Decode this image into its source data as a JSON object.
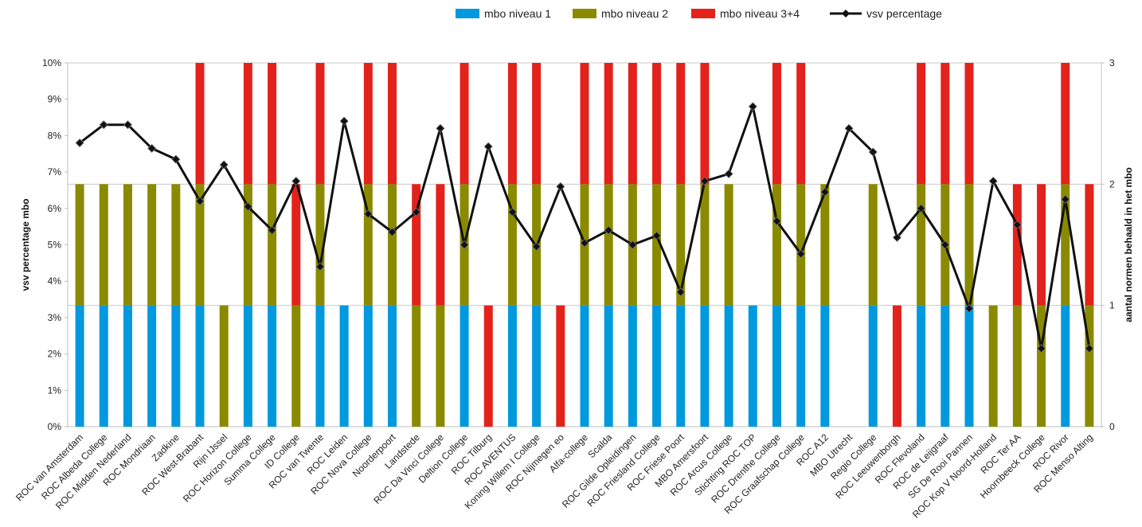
{
  "chart_data": {
    "type": "bar",
    "stacked": true,
    "categories": [
      "ROC van Amsterdam",
      "ROC Albeda College",
      "ROC Midden Nederland",
      "ROC Mondriaan",
      "Zadkine",
      "ROC West-Brabant",
      "Rijn IJssel",
      "ROC Horizon College",
      "Summa College",
      "ID College",
      "ROC van Twente",
      "ROC Leiden",
      "ROC Nova College",
      "Noorderpoort",
      "Landstede",
      "ROC Da Vinci College",
      "Deltion College",
      "ROC Tilburg",
      "ROC AVENTUS",
      "Koning Willem I College",
      "ROC Nijmegen eo",
      "Alfa-college",
      "Scalda",
      "ROC Gilde Opleidingen",
      "ROC Friesland College",
      "ROC Friese Poort",
      "MBO Amersfoort",
      "ROC Arcus College",
      "Stichting ROC TOP",
      "ROC Drenthe College",
      "ROC Graafschap College",
      "ROC A12",
      "MBO Utrecht",
      "Regio College",
      "ROC Leeuwenborgh",
      "ROC Flevoland",
      "ROC de Leijgraaf",
      "SG De Rooi Pannen",
      "ROC Kop V Noord-Holland",
      "ROC Ter AA",
      "Hoornbeeck College",
      "ROC Rivor",
      "ROC Menso Alting"
    ],
    "series": [
      {
        "name": "mbo niveau 1",
        "color": "#0099dd",
        "values": [
          1,
          1,
          1,
          1,
          1,
          1,
          0,
          1,
          1,
          0,
          1,
          1,
          1,
          1,
          0,
          0,
          1,
          0,
          1,
          1,
          0,
          1,
          1,
          1,
          1,
          1,
          1,
          1,
          1,
          1,
          1,
          1,
          0,
          1,
          0,
          1,
          1,
          1,
          0,
          0,
          0,
          1,
          0
        ]
      },
      {
        "name": "mbo niveau 2",
        "color": "#8a8a00",
        "values": [
          1,
          1,
          1,
          1,
          1,
          1,
          1,
          1,
          1,
          1,
          1,
          0,
          1,
          1,
          1,
          1,
          1,
          0,
          1,
          1,
          0,
          1,
          1,
          1,
          1,
          1,
          1,
          1,
          0,
          1,
          1,
          1,
          0,
          1,
          0,
          1,
          1,
          1,
          1,
          1,
          1,
          1,
          1
        ]
      },
      {
        "name": "mbo niveau 3+4",
        "color": "#e3221b",
        "values": [
          0,
          0,
          0,
          0,
          0,
          1,
          0,
          1,
          1,
          1,
          1,
          0,
          1,
          1,
          1,
          1,
          1,
          1,
          1,
          1,
          1,
          1,
          1,
          1,
          1,
          1,
          1,
          0,
          0,
          1,
          1,
          0,
          0,
          0,
          1,
          1,
          1,
          1,
          0,
          1,
          1,
          1,
          1
        ]
      },
      {
        "name": "vsv percentage",
        "type": "line",
        "color": "#111111",
        "axis": "left",
        "values": [
          7.8,
          8.3,
          8.3,
          7.65,
          7.35,
          6.2,
          7.2,
          6.05,
          5.4,
          6.75,
          4.4,
          8.4,
          5.85,
          5.35,
          5.9,
          8.2,
          5.0,
          7.7,
          5.9,
          4.95,
          6.6,
          5.05,
          5.4,
          5.0,
          5.25,
          3.7,
          6.75,
          6.95,
          8.8,
          5.65,
          4.75,
          6.45,
          8.2,
          7.55,
          5.2,
          6.0,
          5.0,
          3.25,
          6.75,
          5.55,
          2.15,
          6.25,
          2.15
        ]
      }
    ],
    "ylabel": "vsv percentage mbo",
    "y2label": "aantal normen behaald in het mbo",
    "ylim": [
      0,
      10
    ],
    "y2lim": [
      0,
      3
    ],
    "yticks": [
      "0%",
      "1%",
      "2%",
      "3%",
      "4%",
      "5%",
      "6%",
      "7%",
      "8%",
      "9%",
      "10%"
    ],
    "y2ticks": [
      "0",
      "1",
      "2",
      "3"
    ],
    "grid": "horizontal at 1, 2, 3 on right axis",
    "legend": "top-center",
    "xlabel": "",
    "title": ""
  }
}
